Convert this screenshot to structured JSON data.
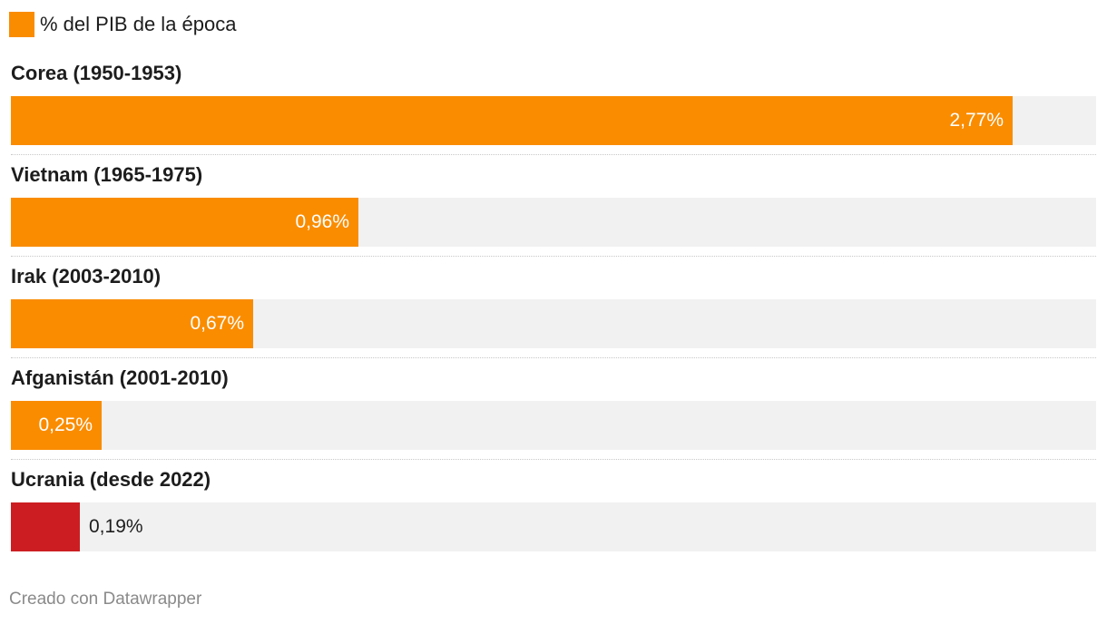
{
  "legend": {
    "label": "% del PIB de la época",
    "color": "#fa8c00"
  },
  "chart_data": {
    "type": "bar",
    "orientation": "horizontal",
    "categories": [
      "Corea (1950-1953)",
      "Vietnam (1965-1975)",
      "Irak (2003-2010)",
      "Afganistán (2001-2010)",
      "Ucrania (desde 2022)"
    ],
    "series": [
      {
        "name": "% del PIB de la época",
        "values": [
          2.77,
          0.96,
          0.67,
          0.25,
          0.19
        ]
      }
    ],
    "value_labels": [
      "2,77%",
      "0,96%",
      "0,67%",
      "0,25%",
      "0,19%"
    ],
    "bar_colors": [
      "#fa8c00",
      "#fa8c00",
      "#fa8c00",
      "#fa8c00",
      "#cc1e22"
    ],
    "xlim": [
      0,
      3.0
    ],
    "title": "",
    "xlabel": "",
    "ylabel": "",
    "grid": false,
    "legend_position": "top-left"
  },
  "footer": {
    "credit": "Creado con Datawrapper"
  }
}
